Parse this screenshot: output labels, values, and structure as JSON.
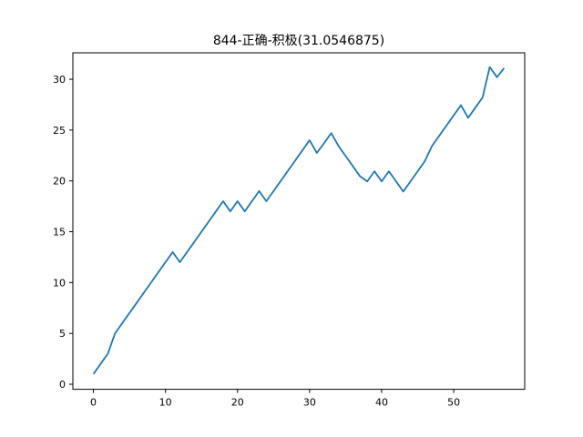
{
  "chart_data": {
    "type": "line",
    "title": "844-正确-积极(31.0546875)",
    "xlabel": "",
    "ylabel": "",
    "xlim": [
      -2.85,
      59.85
    ],
    "ylim": [
      -0.5,
      32.6
    ],
    "xticks": [
      0,
      10,
      20,
      30,
      40,
      50
    ],
    "yticks": [
      0,
      5,
      10,
      15,
      20,
      25,
      30
    ],
    "grid": false,
    "line_color": "#1f77b4",
    "series": [
      {
        "x": [
          0,
          1,
          2,
          3,
          4,
          5,
          6,
          7,
          8,
          9,
          10,
          11,
          12,
          13,
          14,
          15,
          16,
          17,
          18,
          19,
          20,
          21,
          22,
          23,
          24,
          25,
          26,
          27,
          28,
          29,
          30,
          31,
          32,
          33,
          34,
          35,
          36,
          37,
          38,
          39,
          40,
          41,
          42,
          43,
          44,
          45,
          46,
          47,
          48,
          49,
          50,
          51,
          52,
          53,
          54,
          55,
          56,
          57
        ],
        "y": [
          1,
          2,
          3,
          5,
          6,
          7,
          8,
          9,
          10,
          11,
          12,
          13,
          12,
          13,
          14,
          15,
          16,
          17,
          18,
          17,
          18,
          17,
          18,
          19,
          18,
          19,
          20,
          21,
          22,
          23,
          24,
          22.75,
          23.7,
          24.7,
          23.45,
          22.45,
          21.45,
          20.45,
          19.95,
          20.95,
          19.95,
          20.95,
          19.95,
          18.95,
          19.95,
          20.95,
          21.95,
          23.45,
          24.45,
          25.45,
          26.45,
          27.45,
          26.2,
          27.2,
          28.2,
          31.2,
          30.2,
          31.1
        ]
      }
    ]
  }
}
